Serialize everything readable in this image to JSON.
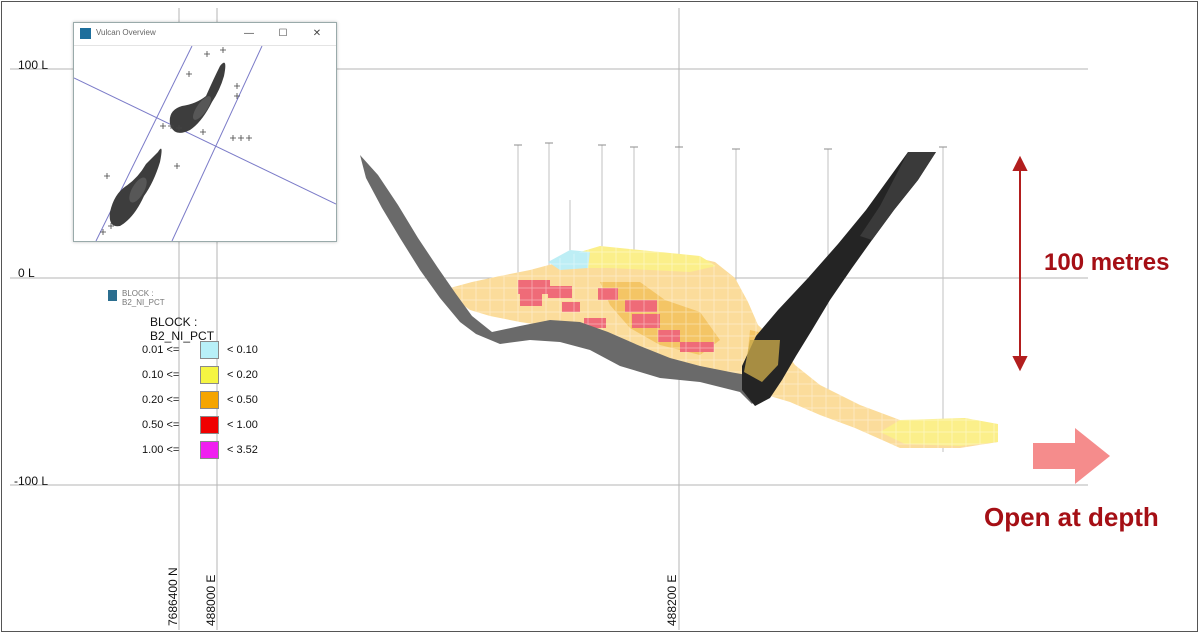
{
  "elevation_labels": [
    "100 L",
    "0 L",
    "-100 L"
  ],
  "grid_labels": [
    "7686400 N",
    "488000 E",
    "488200 E"
  ],
  "inset": {
    "title": "Vulcan Overview",
    "buttons": [
      "—",
      "☐",
      "✕"
    ]
  },
  "legend": {
    "header": "BLOCK : B2_NI_PCT",
    "title": "BLOCK : B2_NI_PCT",
    "rows": [
      {
        "low": "0.01 <=",
        "high": "< 0.10",
        "color": "#b8f0f8"
      },
      {
        "low": "0.10 <=",
        "high": "< 0.20",
        "color": "#f5f542"
      },
      {
        "low": "0.20 <=",
        "high": "< 0.50",
        "color": "#f5a500"
      },
      {
        "low": "0.50 <=",
        "high": "< 1.00",
        "color": "#f00000"
      },
      {
        "low": "1.00 <=",
        "high": "< 3.52",
        "color": "#f020f0"
      }
    ]
  },
  "annotations": {
    "scale": "100 metres",
    "open": "Open at depth"
  },
  "colors": {
    "accent": "#a50f15",
    "arrow": "#f58c8c",
    "grid": "#b5b5b5",
    "ore_light": "#fbdc9b",
    "ore_red": "#ef6b78",
    "ore_yellow": "#fbef8a",
    "ore_orange": "#f4c565",
    "surface_dark": "#242424",
    "surface_grey": "#6a6a6a"
  }
}
